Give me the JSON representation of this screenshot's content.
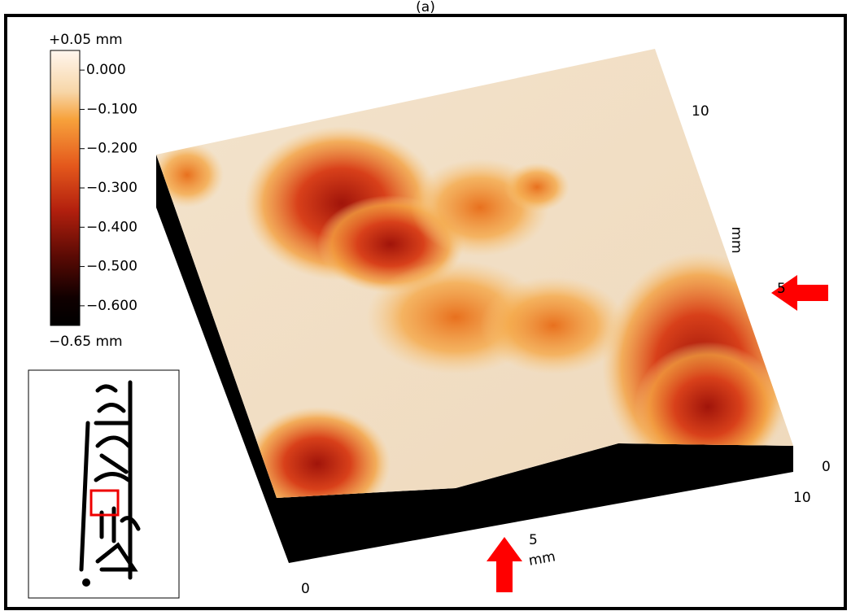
{
  "title": "(a)",
  "colorbar": {
    "top_label": "+0.05 mm",
    "bottom_label": "−0.65 mm",
    "lim": [
      -0.65,
      0.05
    ],
    "ticks": [
      {
        "value": 0,
        "label": "0.000"
      },
      {
        "value": -0.1,
        "label": "−0.100"
      },
      {
        "value": -0.2,
        "label": "−0.200"
      },
      {
        "value": -0.3,
        "label": "−0.300"
      },
      {
        "value": -0.4,
        "label": "−0.400"
      },
      {
        "value": -0.5,
        "label": "−0.500"
      },
      {
        "value": -0.6,
        "label": "−0.600"
      }
    ]
  },
  "axes": {
    "right_axis": {
      "labels": [
        "10",
        "5",
        "0"
      ],
      "unit": "mm"
    },
    "front_axis": {
      "labels": [
        "0",
        "5",
        "10"
      ],
      "unit": "mm"
    }
  }
}
